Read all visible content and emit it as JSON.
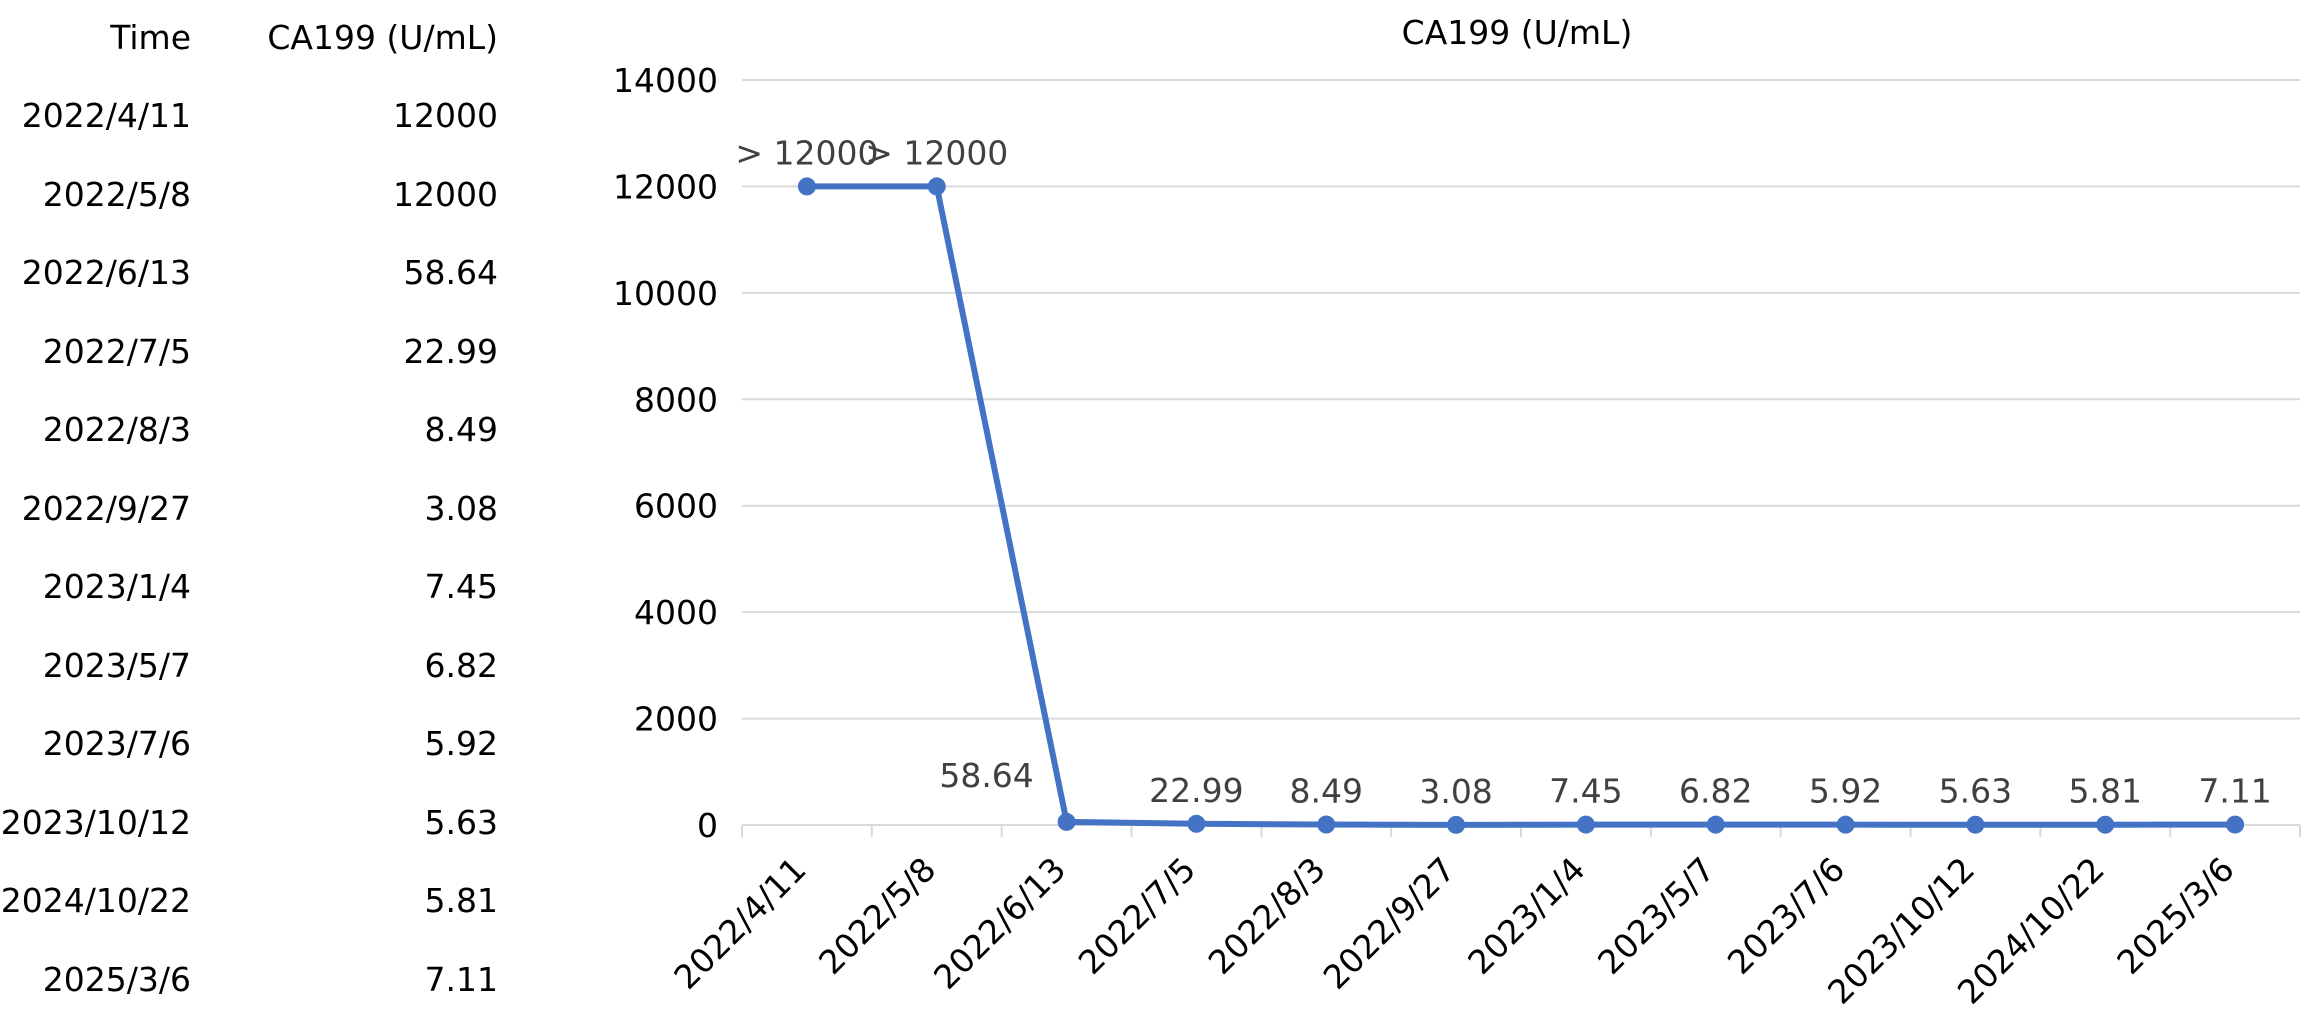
{
  "table": {
    "headers": [
      "Time",
      "CA199 (U/mL)"
    ],
    "rows": [
      [
        "2022/4/11",
        "12000"
      ],
      [
        "2022/5/8",
        "12000"
      ],
      [
        "2022/6/13",
        "58.64"
      ],
      [
        "2022/7/5",
        "22.99"
      ],
      [
        "2022/8/3",
        "8.49"
      ],
      [
        "2022/9/27",
        "3.08"
      ],
      [
        "2023/1/4",
        "7.45"
      ],
      [
        "2023/5/7",
        "6.82"
      ],
      [
        "2023/7/6",
        "5.92"
      ],
      [
        "2023/10/12",
        "5.63"
      ],
      [
        "2024/10/22",
        "5.81"
      ],
      [
        "2025/3/6",
        "7.11"
      ]
    ]
  },
  "chart_data": {
    "type": "line",
    "title": "CA199 (U/mL)",
    "categories": [
      "2022/4/11",
      "2022/5/8",
      "2022/6/13",
      "2022/7/5",
      "2022/8/3",
      "2022/9/27",
      "2023/1/4",
      "2023/5/7",
      "2023/7/6",
      "2023/10/12",
      "2024/10/22",
      "2025/3/6"
    ],
    "series": [
      {
        "values": [
          12000,
          12000,
          58.64,
          22.99,
          8.49,
          3.08,
          7.45,
          6.82,
          5.92,
          5.63,
          5.81,
          7.11
        ]
      }
    ],
    "data_labels": [
      "> 12000",
      "> 12000",
      "58.64",
      "22.99",
      "8.49",
      "3.08",
      "7.45",
      "6.82",
      "5.92",
      "5.63",
      "5.81",
      "7.11"
    ],
    "ylim": [
      0,
      14000
    ],
    "yticks": [
      0,
      2000,
      4000,
      6000,
      8000,
      10000,
      12000,
      14000
    ],
    "grid": true,
    "line_color": "#4472C4",
    "grid_color": "#D9D9D9"
  }
}
